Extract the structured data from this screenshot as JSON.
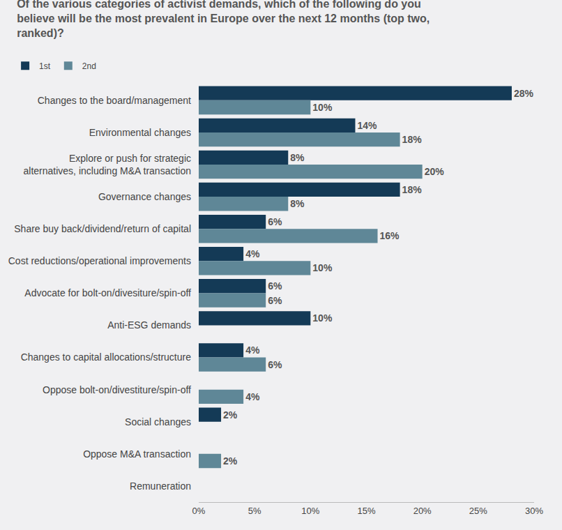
{
  "chart_data": {
    "type": "bar",
    "orientation": "horizontal",
    "title": "Of the various categories of activist demands, which of the following do you believe will be the most prevalent in Europe over the next 12 months (top two, ranked)?",
    "categories": [
      "Changes to the board/management",
      "Environmental changes",
      "Explore or push for strategic alternatives, including M&A transaction",
      "Governance changes",
      "Share buy back/dividend/return of capital",
      "Cost reductions/operational improvements",
      "Advocate for bolt-on/divesiture/spin-off",
      "Anti-ESG demands",
      "Changes to capital allocations/structure",
      "Oppose bolt-on/divestiture/spin-off",
      "Social changes",
      "Oppose M&A transaction",
      "Remuneration"
    ],
    "series": [
      {
        "name": "1st",
        "color": "#143a56",
        "values": [
          28,
          14,
          8,
          18,
          6,
          4,
          6,
          10,
          4,
          null,
          2,
          null,
          null
        ],
        "value_labels": [
          "28%",
          "14%",
          "8%",
          "18%",
          "6%",
          "4%",
          "6%",
          "10%",
          "4%",
          null,
          "2%",
          null,
          null
        ]
      },
      {
        "name": "2nd",
        "color": "#5f8797",
        "values": [
          10,
          18,
          20,
          8,
          16,
          10,
          6,
          null,
          6,
          4,
          null,
          2,
          null
        ],
        "value_labels": [
          "10%",
          "18%",
          "20%",
          "8%",
          "16%",
          "10%",
          "6%",
          null,
          "6%",
          "4%",
          null,
          "2%",
          null
        ]
      }
    ],
    "xlim": [
      0,
      30
    ],
    "xticks": [
      {
        "value": 0,
        "label": "0%"
      },
      {
        "value": 5,
        "label": "5%"
      },
      {
        "value": 10,
        "label": "10%"
      },
      {
        "value": 15,
        "label": "15%"
      },
      {
        "value": 20,
        "label": "20%"
      },
      {
        "value": 25,
        "label": "25%"
      },
      {
        "value": 30,
        "label": "30%"
      }
    ],
    "grid": false,
    "legend": "top-left",
    "data_labels": true
  }
}
